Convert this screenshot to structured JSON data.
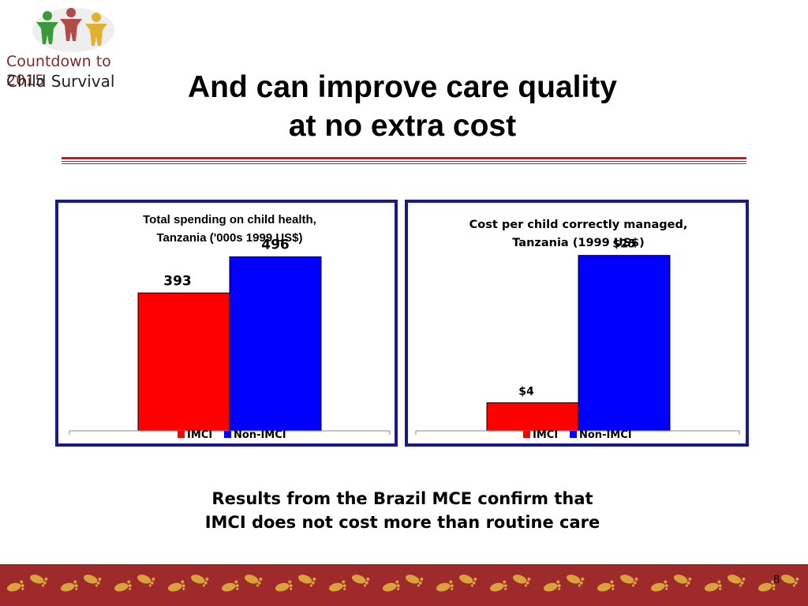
{
  "logo": {
    "line1": "Countdown to 2015",
    "line2": "Child Survival"
  },
  "title": {
    "line1": "And can improve care quality",
    "line2": "at no extra cost"
  },
  "caption": {
    "line1": "Results from the Brazil MCE confirm that",
    "line2": "IMCI does not cost more than routine care"
  },
  "page_number": "8",
  "colors": {
    "imci": "#ff0000",
    "non_imci": "#0000ff",
    "border": "#1a1a8a",
    "rule": "#b02525",
    "footer": "#9e2a2b",
    "footprint": "#d8a33a"
  },
  "chart_data": [
    {
      "type": "bar",
      "title_lines": [
        "Total spending on child health,",
        "Tanzania ('000s 1999 US$)"
      ],
      "categories": [
        "IMCI",
        "Non-IMCI"
      ],
      "values": [
        393,
        496
      ],
      "value_labels": [
        "393",
        "496"
      ],
      "ylim": [
        0,
        560
      ],
      "legend": [
        "IMCI",
        "Non-IMCI"
      ],
      "legend_position": "bottom",
      "grid": false
    },
    {
      "type": "bar",
      "title_lines": [
        "Cost per child correctly managed,",
        "Tanzania (1999 US$)"
      ],
      "categories": [
        "IMCI",
        "Non-IMCI"
      ],
      "values": [
        4,
        25
      ],
      "value_labels": [
        "$4",
        "$25"
      ],
      "ylim": [
        0,
        28
      ],
      "legend": [
        "IMCI",
        "Non-IMCI"
      ],
      "legend_position": "bottom",
      "grid": false
    }
  ]
}
